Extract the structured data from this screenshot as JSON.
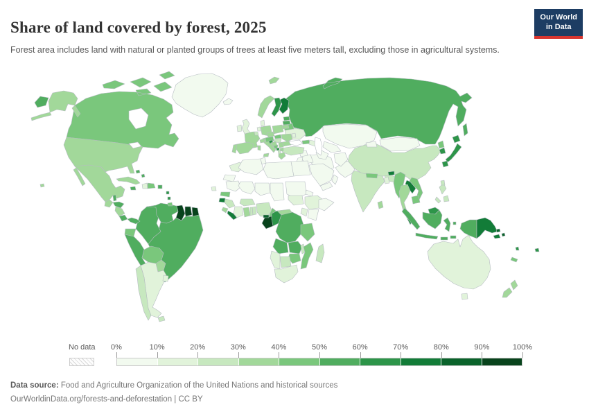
{
  "header": {
    "title": "Share of land covered by forest, 2025",
    "subtitle": "Forest area includes land with natural or planted groups of trees at least five meters tall, excluding those in agricultural systems.",
    "logo": {
      "line1": "Our World",
      "line2": "in Data",
      "bg_color": "#1d3d63",
      "accent_color": "#d7352f"
    }
  },
  "footer": {
    "source_label": "Data source:",
    "source_text": " Food and Agriculture Organization of the United Nations and historical sources",
    "license_line": "OurWorldinData.org/forests-and-deforestation | CC BY"
  },
  "chart_data": {
    "type": "heatmap",
    "subtype": "choropleth_world_map",
    "title": "Share of land covered by forest",
    "year": "2025",
    "unit": "% of land area covered by forest",
    "legend": {
      "no_data_label": "No data",
      "ticks": [
        "0%",
        "10%",
        "20%",
        "30%",
        "40%",
        "50%",
        "60%",
        "70%",
        "80%",
        "90%",
        "100%"
      ],
      "colors": [
        "#f2faef",
        "#e1f3da",
        "#c7e8bf",
        "#a2d89a",
        "#7ac77c",
        "#50ad5f",
        "#2d9549",
        "#127c38",
        "#0a632b",
        "#08431c"
      ],
      "border_color": "#b6bcc2",
      "ocean_color": "#ffffff"
    },
    "countries": [
      {
        "id": "russia",
        "name": "Russia",
        "share": "50-60%"
      },
      {
        "id": "canada",
        "name": "Canada",
        "share": "40-50%"
      },
      {
        "id": "usa",
        "name": "United States",
        "share": "30-40%"
      },
      {
        "id": "greenland",
        "name": "Greenland",
        "share": "0-10%"
      },
      {
        "id": "china",
        "name": "China",
        "share": "20-30%"
      },
      {
        "id": "brazil",
        "name": "Brazil",
        "share": "50-60%"
      },
      {
        "id": "australia",
        "name": "Australia",
        "share": "10-20%"
      },
      {
        "id": "india",
        "name": "India",
        "share": "20-30%"
      },
      {
        "id": "kazakhstan",
        "name": "Kazakhstan",
        "share": "0-10%"
      },
      {
        "id": "mongolia",
        "name": "Mongolia",
        "share": "0-10%"
      },
      {
        "id": "mexico",
        "name": "Mexico",
        "share": "30-40%"
      },
      {
        "id": "argentina",
        "name": "Argentina",
        "share": "10-20%"
      },
      {
        "id": "chile",
        "name": "Chile",
        "share": "20-30%"
      },
      {
        "id": "peru",
        "name": "Peru",
        "share": "50-60%"
      },
      {
        "id": "colombia",
        "name": "Colombia",
        "share": "50-60%"
      },
      {
        "id": "venezuela",
        "name": "Venezuela",
        "share": "50-60%"
      },
      {
        "id": "bolivia",
        "name": "Bolivia",
        "share": "40-50%"
      },
      {
        "id": "paraguay",
        "name": "Paraguay",
        "share": "30-40%"
      },
      {
        "id": "uruguay",
        "name": "Uruguay",
        "share": "10-20%"
      },
      {
        "id": "ecuador",
        "name": "Ecuador",
        "share": "40-50%"
      },
      {
        "id": "guyana",
        "name": "Guyana",
        "share": "90-100%"
      },
      {
        "id": "suriname",
        "name": "Suriname",
        "share": "90-100%"
      },
      {
        "id": "french-guiana",
        "name": "French Guiana",
        "share": "90-100%"
      },
      {
        "id": "pakistan",
        "name": "Pakistan",
        "share": "0-10%"
      },
      {
        "id": "afghanistan",
        "name": "Afghanistan",
        "share": "0-10%"
      },
      {
        "id": "iran",
        "name": "Iran",
        "share": "0-10%"
      },
      {
        "id": "iraq",
        "name": "Iraq",
        "share": "0-10%"
      },
      {
        "id": "saudi-arabia",
        "name": "Saudi Arabia",
        "share": "0-10%"
      },
      {
        "id": "yemen",
        "name": "Yemen",
        "share": "0-10%"
      },
      {
        "id": "oman",
        "name": "Oman",
        "share": "0-10%"
      },
      {
        "id": "syria",
        "name": "Syria",
        "share": "0-10%"
      },
      {
        "id": "jordan",
        "name": "Jordan",
        "share": "0-10%"
      },
      {
        "id": "turkey",
        "name": "Turkey",
        "share": "20-30%"
      },
      {
        "id": "georgia",
        "name": "Georgia",
        "share": "40-50%"
      },
      {
        "id": "azerbaijan",
        "name": "Azerbaijan",
        "share": "10-20%"
      },
      {
        "id": "uzbekistan",
        "name": "Uzbekistan",
        "share": "0-10%"
      },
      {
        "id": "turkmenistan",
        "name": "Turkmenistan",
        "share": "0-10%"
      },
      {
        "id": "kyrgyzstan",
        "name": "Kyrgyzstan",
        "share": "0-10%"
      },
      {
        "id": "ukraine",
        "name": "Ukraine",
        "share": "10-20%"
      },
      {
        "id": "belarus",
        "name": "Belarus",
        "share": "40-50%"
      },
      {
        "id": "poland",
        "name": "Poland",
        "share": "30-40%"
      },
      {
        "id": "germany",
        "name": "Germany",
        "share": "30-40%"
      },
      {
        "id": "france",
        "name": "France",
        "share": "30-40%"
      },
      {
        "id": "spain",
        "name": "Spain",
        "share": "30-40%"
      },
      {
        "id": "portugal",
        "name": "Portugal",
        "share": "30-40%"
      },
      {
        "id": "italy",
        "name": "Italy",
        "share": "30-40%"
      },
      {
        "id": "norway",
        "name": "Norway",
        "share": "30-40%"
      },
      {
        "id": "sweden",
        "name": "Sweden",
        "share": "60-70%"
      },
      {
        "id": "finland",
        "name": "Finland",
        "share": "70-80%"
      },
      {
        "id": "uk",
        "name": "United Kingdom",
        "share": "10-20%"
      },
      {
        "id": "ireland",
        "name": "Ireland",
        "share": "10-20%"
      },
      {
        "id": "iceland",
        "name": "Iceland",
        "share": "0-10%"
      },
      {
        "id": "denmark",
        "name": "Denmark",
        "share": "10-20%"
      },
      {
        "id": "netherlands",
        "name": "Netherlands",
        "share": "10-20%"
      },
      {
        "id": "belgium",
        "name": "Belgium",
        "share": "20-30%"
      },
      {
        "id": "switzerland",
        "name": "Switzerland",
        "share": "30-40%"
      },
      {
        "id": "austria",
        "name": "Austria",
        "share": "40-50%"
      },
      {
        "id": "czechia",
        "name": "Czechia",
        "share": "30-40%"
      },
      {
        "id": "slovakia",
        "name": "Slovakia",
        "share": "40-50%"
      },
      {
        "id": "hungary",
        "name": "Hungary",
        "share": "20-30%"
      },
      {
        "id": "romania",
        "name": "Romania",
        "share": "30-40%"
      },
      {
        "id": "bulgaria",
        "name": "Bulgaria",
        "share": "30-40%"
      },
      {
        "id": "moldova",
        "name": "Moldova",
        "share": "10-20%"
      },
      {
        "id": "estonia",
        "name": "Estonia",
        "share": "50-60%"
      },
      {
        "id": "latvia",
        "name": "Latvia",
        "share": "50-60%"
      },
      {
        "id": "lithuania",
        "name": "Lithuania",
        "share": "30-40%"
      },
      {
        "id": "slovenia",
        "name": "Slovenia",
        "share": "60-70%"
      },
      {
        "id": "croatia",
        "name": "Croatia",
        "share": "30-40%"
      },
      {
        "id": "bosnia",
        "name": "Bosnia and Herzegovina",
        "share": "40-50%"
      },
      {
        "id": "serbia",
        "name": "Serbia",
        "share": "30-40%"
      },
      {
        "id": "montenegro",
        "name": "Montenegro",
        "share": "60-70%"
      },
      {
        "id": "albania",
        "name": "Albania",
        "share": "20-30%"
      },
      {
        "id": "macedonia",
        "name": "North Macedonia",
        "share": "30-40%"
      },
      {
        "id": "greece",
        "name": "Greece",
        "share": "30-40%"
      },
      {
        "id": "morocco",
        "name": "Morocco",
        "share": "10-20%"
      },
      {
        "id": "western-sahara",
        "name": "Western Sahara",
        "share": "0-10%"
      },
      {
        "id": "algeria",
        "name": "Algeria",
        "share": "0-10%"
      },
      {
        "id": "tunisia",
        "name": "Tunisia",
        "share": "0-10%"
      },
      {
        "id": "libya",
        "name": "Libya",
        "share": "0-10%"
      },
      {
        "id": "egypt",
        "name": "Egypt",
        "share": "0-10%"
      },
      {
        "id": "mauritania",
        "name": "Mauritania",
        "share": "0-10%"
      },
      {
        "id": "mali",
        "name": "Mali",
        "share": "0-10%"
      },
      {
        "id": "niger",
        "name": "Niger",
        "share": "0-10%"
      },
      {
        "id": "chad",
        "name": "Chad",
        "share": "0-10%"
      },
      {
        "id": "sudan",
        "name": "Sudan",
        "share": "0-10%"
      },
      {
        "id": "south-sudan",
        "name": "South Sudan",
        "share": "10-20%"
      },
      {
        "id": "eritrea",
        "name": "Eritrea",
        "share": "0-10%"
      },
      {
        "id": "ethiopia",
        "name": "Ethiopia",
        "share": "10-20%"
      },
      {
        "id": "somalia",
        "name": "Somalia",
        "share": "0-10%"
      },
      {
        "id": "kenya",
        "name": "Kenya",
        "share": "0-10%"
      },
      {
        "id": "uganda",
        "name": "Uganda",
        "share": "10-20%"
      },
      {
        "id": "senegal",
        "name": "Senegal",
        "share": "40-50%"
      },
      {
        "id": "guinea-bissau",
        "name": "Guinea-Bissau",
        "share": "70-80%"
      },
      {
        "id": "guinea",
        "name": "Guinea",
        "share": "20-30%"
      },
      {
        "id": "sierra-leone",
        "name": "Sierra Leone",
        "share": "30-40%"
      },
      {
        "id": "liberia",
        "name": "Liberia",
        "share": "70-80%"
      },
      {
        "id": "ivory-coast",
        "name": "Cote d'Ivoire",
        "share": "10-20%"
      },
      {
        "id": "ghana",
        "name": "Ghana",
        "share": "30-40%"
      },
      {
        "id": "togo",
        "name": "Togo",
        "share": "20-30%"
      },
      {
        "id": "benin",
        "name": "Benin",
        "share": "20-30%"
      },
      {
        "id": "burkina-faso",
        "name": "Burkina Faso",
        "share": "20-30%"
      },
      {
        "id": "nigeria",
        "name": "Nigeria",
        "share": "20-30%"
      },
      {
        "id": "cameroon",
        "name": "Cameroon",
        "share": "40-50%"
      },
      {
        "id": "central-african-republic",
        "name": "Central African Republic",
        "share": "30-40%"
      },
      {
        "id": "gabon",
        "name": "Gabon",
        "share": "90-100%"
      },
      {
        "id": "equatorial-guinea",
        "name": "Equatorial Guinea",
        "share": "80-90%"
      },
      {
        "id": "congo",
        "name": "Congo",
        "share": "60-70%"
      },
      {
        "id": "drc",
        "name": "Democratic Republic of Congo",
        "share": "50-60%"
      },
      {
        "id": "angola",
        "name": "Angola",
        "share": "50-60%"
      },
      {
        "id": "zambia",
        "name": "Zambia",
        "share": "50-60%"
      },
      {
        "id": "tanzania",
        "name": "Tanzania",
        "share": "40-50%"
      },
      {
        "id": "malawi",
        "name": "Malawi",
        "share": "20-30%"
      },
      {
        "id": "mozambique",
        "name": "Mozambique",
        "share": "40-50%"
      },
      {
        "id": "zimbabwe",
        "name": "Zimbabwe",
        "share": "40-50%"
      },
      {
        "id": "botswana",
        "name": "Botswana",
        "share": "20-30%"
      },
      {
        "id": "namibia",
        "name": "Namibia",
        "share": "10-20%"
      },
      {
        "id": "south-africa",
        "name": "South Africa",
        "share": "10-20%"
      },
      {
        "id": "madagascar",
        "name": "Madagascar",
        "share": "20-30%"
      },
      {
        "id": "nepal",
        "name": "Nepal",
        "share": "40-50%"
      },
      {
        "id": "bhutan",
        "name": "Bhutan",
        "share": "70-80%"
      },
      {
        "id": "bangladesh",
        "name": "Bangladesh",
        "share": "10-20%"
      },
      {
        "id": "sri-lanka",
        "name": "Sri Lanka",
        "share": "30-40%"
      },
      {
        "id": "myanmar",
        "name": "Myanmar",
        "share": "40-50%"
      },
      {
        "id": "laos",
        "name": "Laos",
        "share": "70-80%"
      },
      {
        "id": "thailand",
        "name": "Thailand",
        "share": "30-40%"
      },
      {
        "id": "vietnam",
        "name": "Vietnam",
        "share": "40-50%"
      },
      {
        "id": "cambodia",
        "name": "Cambodia",
        "share": "40-50%"
      },
      {
        "id": "malaysia",
        "name": "Malaysia",
        "share": "60-70%"
      },
      {
        "id": "indonesia",
        "name": "Indonesia",
        "share": "50-60%"
      },
      {
        "id": "png",
        "name": "Papua New Guinea",
        "share": "70-80%"
      },
      {
        "id": "philippines",
        "name": "Philippines",
        "share": "20-30%"
      },
      {
        "id": "taiwan",
        "name": "Taiwan",
        "share": "20-30%"
      },
      {
        "id": "north-korea",
        "name": "North Korea",
        "share": "40-50%"
      },
      {
        "id": "south-korea",
        "name": "South Korea",
        "share": "60-70%"
      },
      {
        "id": "japan",
        "name": "Japan",
        "share": "60-70%"
      },
      {
        "id": "new-zealand",
        "name": "New Zealand",
        "share": "30-40%"
      },
      {
        "id": "solomon-islands",
        "name": "Solomon Islands",
        "share": "80-90%"
      },
      {
        "id": "vanuatu",
        "name": "Vanuatu",
        "share": "60-70%"
      },
      {
        "id": "fiji",
        "name": "Fiji",
        "share": "60-70%"
      },
      {
        "id": "new-caledonia",
        "name": "New Caledonia",
        "share": "40-50%"
      },
      {
        "id": "guatemala",
        "name": "Guatemala",
        "share": "30-40%"
      },
      {
        "id": "belize",
        "name": "Belize",
        "share": "50-60%"
      },
      {
        "id": "honduras",
        "name": "Honduras",
        "share": "50-60%"
      },
      {
        "id": "nicaragua",
        "name": "Nicaragua",
        "share": "30-40%"
      },
      {
        "id": "costa-rica",
        "name": "Costa Rica",
        "share": "50-60%"
      },
      {
        "id": "panama",
        "name": "Panama",
        "share": "50-60%"
      },
      {
        "id": "cuba",
        "name": "Cuba",
        "share": "30-40%"
      },
      {
        "id": "jamaica",
        "name": "Jamaica",
        "share": "50-60%"
      },
      {
        "id": "haiti",
        "name": "Haiti",
        "share": "10-20%"
      },
      {
        "id": "dominican-republic",
        "name": "Dominican Republic",
        "share": "40-50%"
      },
      {
        "id": "puerto-rico",
        "name": "Puerto Rico",
        "share": "50-60%"
      },
      {
        "id": "bahamas",
        "name": "Bahamas",
        "share": "50-60%"
      },
      {
        "id": "lesser-antilles",
        "name": "Lesser Antilles",
        "share": "60-70%"
      },
      {
        "id": "trinidad",
        "name": "Trinidad and Tobago",
        "share": "40-50%"
      },
      {
        "id": "cape-verde",
        "name": "Cape Verde",
        "share": "10-20%"
      }
    ]
  }
}
